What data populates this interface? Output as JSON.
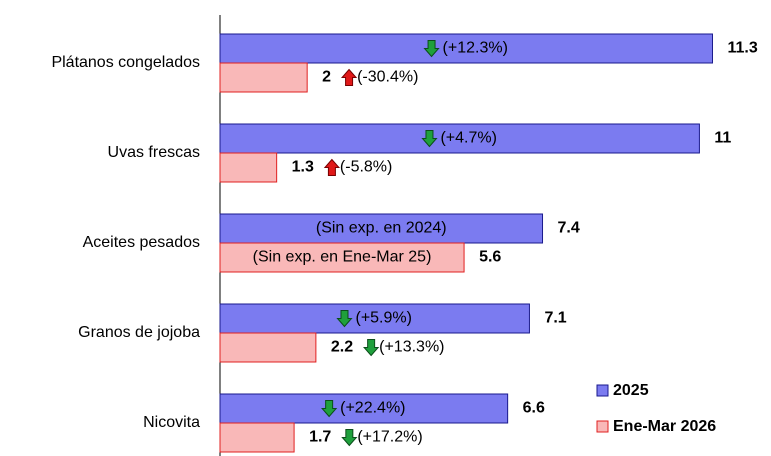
{
  "chart_data": {
    "type": "hbar",
    "categories": [
      "Plátanos congelados",
      "Uvas frescas",
      "Aceites pesados",
      "Granos de jojoba",
      "Nicovita"
    ],
    "series": [
      {
        "name": "2025",
        "color": "#7b7bf0",
        "border": "#1a1a8c",
        "values": [
          11.3,
          11.0,
          7.4,
          7.1,
          6.6
        ],
        "notes": [
          "(+12.3%)",
          "(+4.7%)",
          "(Sin exp. en 2024)",
          "(+5.9%)",
          "(+22.4%)"
        ],
        "arrows": [
          "up",
          "up",
          null,
          "up",
          "up"
        ]
      },
      {
        "name": "Ene-Mar 2026",
        "color": "#f9b8b8",
        "border": "#e02020",
        "values": [
          2.0,
          1.3,
          5.6,
          2.2,
          1.7
        ],
        "notes": [
          "(-30.4%)",
          "(-5.8%)",
          "(Sin exp. en Ene-Mar 25)",
          "(+13.3%)",
          "(+17.2%)"
        ],
        "arrows": [
          "down",
          "down",
          null,
          "up",
          "up"
        ]
      }
    ],
    "xlim": [
      0,
      12
    ],
    "legend": "lower right"
  }
}
